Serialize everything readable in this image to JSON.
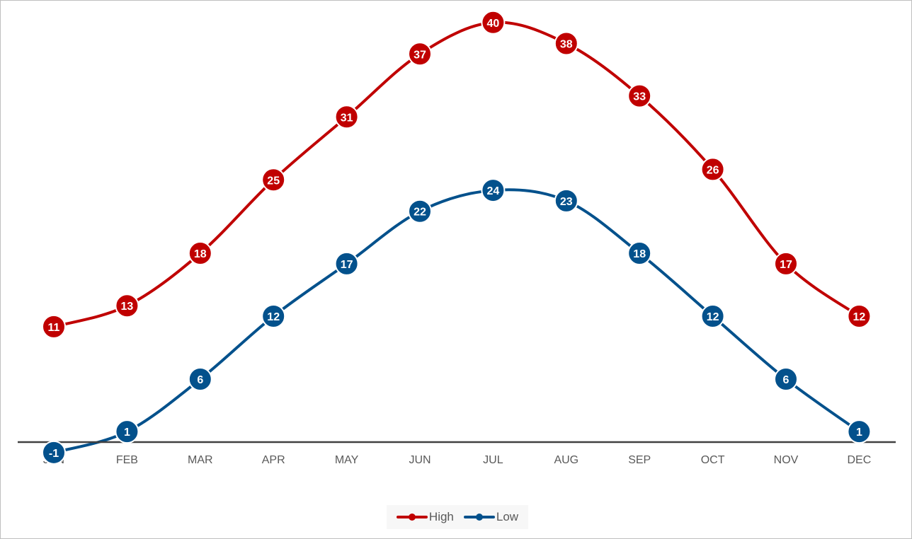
{
  "chart_data": {
    "type": "line",
    "title": "",
    "xlabel": "",
    "ylabel": "",
    "categories": [
      "JAN",
      "FEB",
      "MAR",
      "APR",
      "MAY",
      "JUN",
      "JUL",
      "AUG",
      "SEP",
      "OCT",
      "NOV",
      "DEC"
    ],
    "series": [
      {
        "name": "High",
        "color": "#c00000",
        "values": [
          11,
          13,
          18,
          25,
          31,
          37,
          40,
          38,
          33,
          26,
          17,
          12
        ]
      },
      {
        "name": "Low",
        "color": "#03518c",
        "values": [
          -1,
          1,
          6,
          12,
          17,
          22,
          24,
          23,
          18,
          12,
          6,
          1
        ]
      }
    ],
    "ylim": [
      -3,
      44
    ],
    "grid": false,
    "smooth": true,
    "data_labels": true,
    "legend_position": "bottom"
  }
}
